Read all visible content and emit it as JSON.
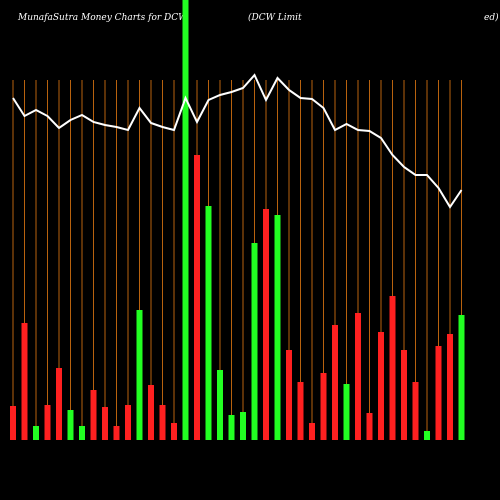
{
  "chart_data": {
    "type": "bar",
    "title": "MunafaSutra  Money  Charts for DCW",
    "subtitle": "(DCW Limit",
    "subtitle_tail": "ed)",
    "ylim": [
      0,
      440
    ],
    "grid": true,
    "grid_color": "#b8620e",
    "values": [
      34,
      117,
      14,
      35,
      72,
      30,
      14,
      50,
      33,
      14,
      35,
      130,
      55,
      35,
      17,
      440,
      285,
      234,
      70,
      25,
      28,
      197,
      231,
      225,
      90,
      58,
      17,
      67,
      115,
      56,
      127,
      27,
      108,
      144,
      90,
      58,
      9,
      94,
      106,
      125
    ],
    "colors": [
      "#ff2020",
      "#ff2020",
      "#22ff22",
      "#ff2020",
      "#ff2020",
      "#22ff22",
      "#22ff22",
      "#ff2020",
      "#ff2020",
      "#ff2020",
      "#ff2020",
      "#22ff22",
      "#ff2020",
      "#ff2020",
      "#ff2020",
      "#22ff22",
      "#ff2020",
      "#22ff22",
      "#22ff22",
      "#22ff22",
      "#22ff22",
      "#22ff22",
      "#ff2020",
      "#22ff22",
      "#ff2020",
      "#ff2020",
      "#ff2020",
      "#ff2020",
      "#ff2020",
      "#22ff22",
      "#ff2020",
      "#ff2020",
      "#ff2020",
      "#ff2020",
      "#ff2020",
      "#ff2020",
      "#22ff22",
      "#ff2020",
      "#ff2020",
      "#22ff22"
    ],
    "line": {
      "color": "#ffffff",
      "values": [
        342,
        324,
        330,
        324,
        312,
        320,
        325,
        318,
        315,
        313,
        310,
        332,
        317,
        313,
        310,
        342,
        318,
        340,
        345,
        348,
        352,
        365,
        340,
        362,
        350,
        342,
        341,
        332,
        310,
        316,
        310,
        309,
        302,
        285,
        273,
        265,
        265,
        252,
        233,
        250
      ]
    }
  }
}
